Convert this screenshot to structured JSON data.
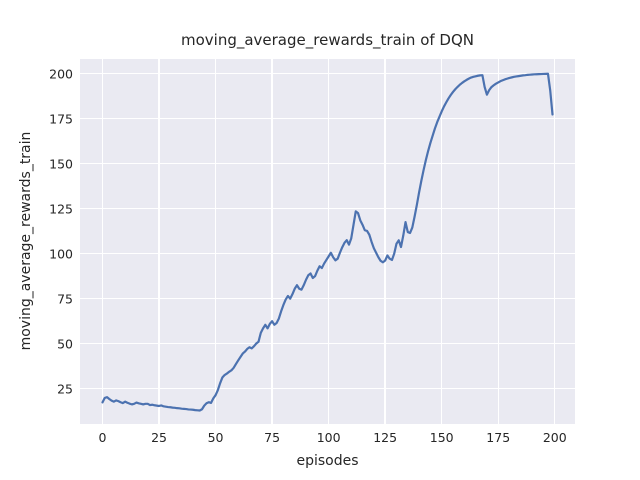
{
  "figure": {
    "title": "moving_average_rewards_train of DQN",
    "xlabel": "episodes",
    "ylabel": "moving_average_rewards_train"
  },
  "colors": {
    "figure_bg": "#ffffff",
    "plot_bg": "#eaeaf2",
    "grid": "#ffffff",
    "line": "#4c72b0",
    "text": "#262626"
  },
  "chart_data": {
    "type": "line",
    "title": "moving_average_rewards_train of DQN",
    "xlabel": "episodes",
    "ylabel": "moving_average_rewards_train",
    "legend": false,
    "grid": true,
    "xlim": [
      -9.95,
      208.95
    ],
    "ylim": [
      5.4,
      208.1
    ],
    "xticks": [
      0,
      25,
      50,
      75,
      100,
      125,
      150,
      175,
      200
    ],
    "yticks": [
      25,
      50,
      75,
      100,
      125,
      150,
      175,
      200
    ],
    "series_name": "DQN moving average reward (train)",
    "x_start": 0,
    "x_step": 1,
    "y": [
      17.4,
      19.9,
      20.3,
      19.3,
      18.4,
      17.8,
      18.5,
      18.1,
      17.5,
      17.0,
      17.8,
      17.2,
      16.7,
      16.3,
      16.6,
      17.3,
      16.9,
      16.6,
      16.3,
      16.6,
      16.6,
      15.9,
      16.1,
      15.8,
      15.6,
      15.4,
      15.7,
      15.2,
      15.0,
      14.8,
      14.7,
      14.5,
      14.4,
      14.2,
      14.1,
      13.9,
      13.8,
      13.7,
      13.5,
      13.4,
      13.3,
      13.1,
      13.0,
      12.9,
      13.6,
      15.6,
      16.9,
      17.5,
      17.1,
      19.6,
      21.4,
      24.2,
      28.0,
      31.2,
      32.6,
      33.4,
      34.4,
      35.2,
      36.6,
      38.7,
      40.7,
      42.6,
      44.5,
      45.6,
      47.1,
      48.0,
      47.4,
      48.6,
      50.1,
      51.1,
      56.0,
      58.5,
      60.5,
      58.5,
      61.0,
      62.5,
      60.5,
      61.5,
      64.0,
      68.0,
      71.5,
      74.5,
      76.5,
      75.0,
      77.5,
      80.5,
      82.5,
      80.5,
      80.0,
      82.5,
      85.5,
      88.0,
      89.0,
      86.5,
      87.5,
      90.5,
      93.0,
      92.0,
      94.5,
      96.5,
      98.5,
      100.5,
      98.0,
      96.3,
      97.2,
      100.5,
      103.5,
      106.0,
      107.5,
      105.0,
      108.5,
      116.0,
      123.5,
      122.5,
      118.5,
      116.0,
      113.0,
      112.6,
      110.5,
      106.5,
      103.0,
      100.5,
      98.0,
      96.0,
      95.2,
      96.2,
      99.0,
      97.2,
      96.5,
      100.0,
      105.5,
      107.4,
      103.7,
      110.0,
      117.5,
      112.0,
      111.5,
      114.5,
      120.5,
      127.0,
      134.0,
      140.5,
      146.5,
      152.0,
      157.0,
      161.5,
      165.5,
      169.5,
      173.0,
      176.0,
      179.0,
      181.7,
      184.0,
      186.2,
      188.1,
      189.8,
      191.3,
      192.6,
      193.8,
      194.8,
      195.7,
      196.5,
      197.2,
      197.8,
      198.2,
      198.5,
      198.8,
      199.0,
      199.1,
      192.5,
      188.3,
      190.8,
      192.5,
      193.5,
      194.4,
      195.1,
      195.8,
      196.3,
      196.8,
      197.2,
      197.6,
      197.9,
      198.2,
      198.4,
      198.6,
      198.8,
      199.0,
      199.1,
      199.3,
      199.4,
      199.5,
      199.6,
      199.65,
      199.7,
      199.75,
      199.8,
      199.85,
      199.9,
      190.5,
      177.3
    ]
  }
}
